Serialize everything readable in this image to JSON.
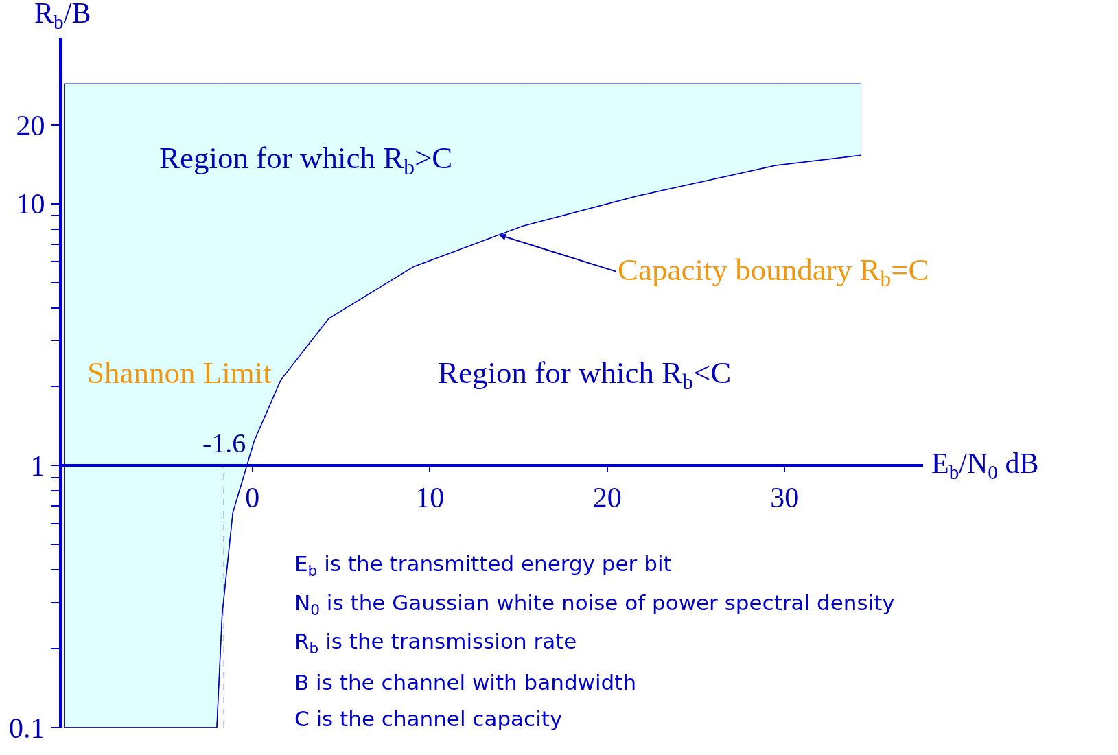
{
  "chart_data": {
    "type": "line",
    "xlabel": "E$_{b}$/N$_{0}$ dB",
    "ylabel": "R$_{b}$/B",
    "log": "y",
    "marker": "none",
    "line_style": "solid",
    "xlim": [
      -10.7,
      37.8
    ],
    "ylim": [
      0.1,
      43
    ],
    "xticks": [
      0,
      10,
      20,
      30
    ],
    "yticks": [
      0.1,
      {
        "value": 0.2,
        "label": null
      },
      {
        "value": 0.3,
        "label": null
      },
      {
        "value": 0.4,
        "label": null
      },
      {
        "value": 0.5,
        "label": null
      },
      {
        "value": 0.6,
        "label": null
      },
      {
        "value": 0.7,
        "label": null
      },
      {
        "value": 0.8,
        "label": null
      },
      {
        "value": 0.9,
        "label": null
      },
      1,
      {
        "value": 2,
        "label": null
      },
      {
        "value": 3,
        "label": null
      },
      {
        "value": 4,
        "label": null
      },
      {
        "value": 5,
        "label": null
      },
      {
        "value": 6,
        "label": null
      },
      {
        "value": 7,
        "label": null
      },
      {
        "value": 8,
        "label": null
      },
      {
        "value": 9,
        "label": null
      },
      10,
      20
    ],
    "series": [
      {
        "color": "#0000cc",
        "x": [
          -10.6,
          -2.0,
          -1.7,
          -1.1,
          0.1,
          1.6,
          4.3,
          9.1,
          15.2,
          21.7,
          29.5,
          34.3
        ],
        "values": [
          0.1,
          0.1,
          0.27,
          0.66,
          1.24,
          2.12,
          3.64,
          5.75,
          8.2,
          10.7,
          14.0,
          15.3
        ],
        "lower": [
          0.1,
          0.1,
          0.27,
          0.66,
          1.24,
          2.12,
          3.64,
          5.75,
          8.2,
          10.7,
          14.0,
          15.3
        ],
        "upper": [
          28.7,
          28.7,
          28.7,
          28.7,
          28.7,
          28.7,
          28.7,
          28.7,
          28.7,
          28.7,
          28.7,
          28.7
        ]
      }
    ],
    "ref_lines": [
      {
        "axis": "x",
        "value": -1.6,
        "label": "-1.6",
        "color": "#000066",
        "line_style": "dashed"
      }
    ],
    "annotations": [
      "Region for which R$_{b}$>C",
      "Region for which R$_{b}$<C",
      "Shannon Limit",
      {
        "text": "Capacity boundary R$_{b}$=C",
        "x": 13.9,
        "y": 7.6
      },
      "E$_{b}$ is the transmitted energy per bit",
      "N$_{0}$ is the Gaussian white noise of power spectral density",
      "R$_{b}$ is the transmission rate",
      "B is the channel with bandwidth",
      "C is the channel capacity"
    ]
  }
}
